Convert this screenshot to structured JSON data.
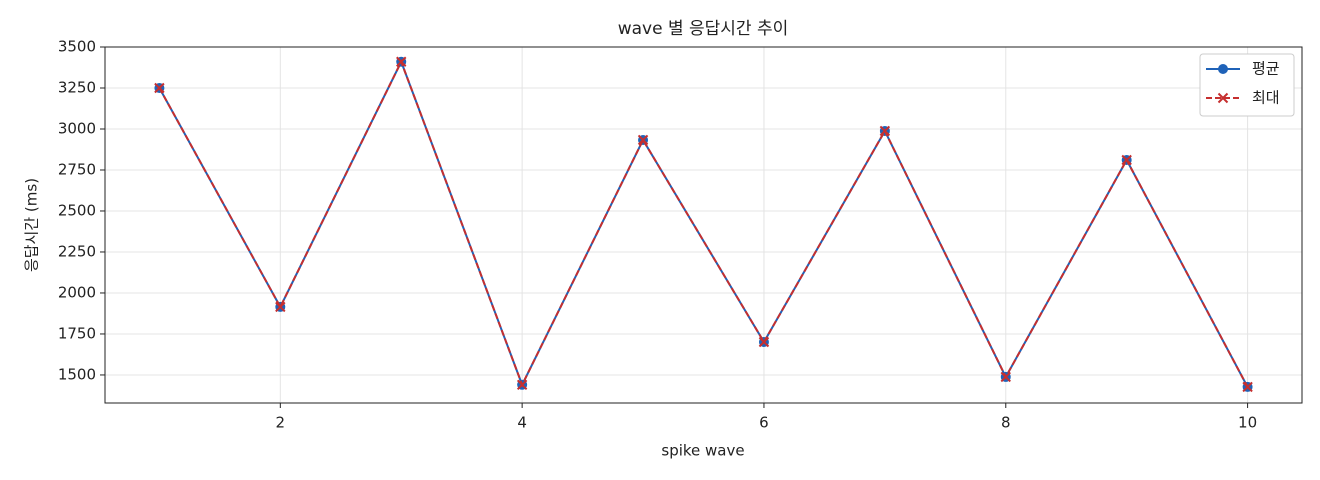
{
  "chart_data": {
    "type": "line",
    "title": "wave 별 응답시간 추이",
    "x_label": "spike wave",
    "y_label": "응답시간 (ms)",
    "x": [
      1,
      2,
      3,
      4,
      5,
      6,
      7,
      8,
      9,
      10
    ],
    "series": [
      {
        "name": "평균",
        "color": "#1f62b8",
        "marker": "o",
        "linestyle": "solid",
        "values": [
          3250,
          1915,
          3410,
          1440,
          2933,
          1701,
          2988,
          1488,
          2811,
          1427
        ]
      },
      {
        "name": "최대",
        "color": "#c62f2f",
        "marker": "x",
        "linestyle": "dashed",
        "values": [
          3250,
          1915,
          3410,
          1440,
          2933,
          1701,
          2988,
          1488,
          2811,
          1427
        ]
      }
    ],
    "xlim": [
      0.55,
      10.45
    ],
    "ylim": [
      1329,
      3500
    ],
    "xticks": [
      2,
      4,
      6,
      8,
      10
    ],
    "yticks": [
      1500,
      1750,
      2000,
      2250,
      2500,
      2750,
      3000,
      3250,
      3500
    ],
    "grid": true,
    "legend": "upper right"
  }
}
